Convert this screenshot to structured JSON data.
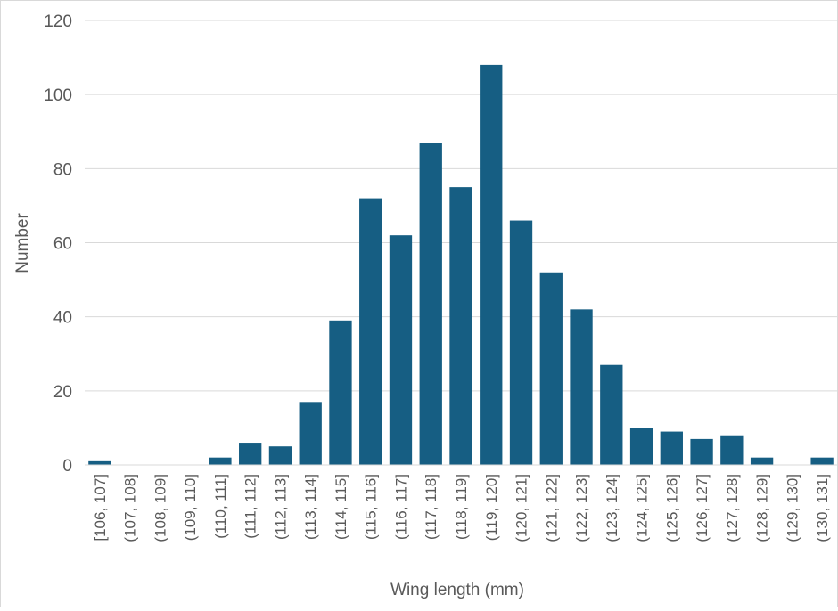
{
  "chart_data": {
    "type": "bar",
    "title": "",
    "xlabel": "Wing length (mm)",
    "ylabel": "Number",
    "ylim": [
      0,
      120
    ],
    "yticks": [
      0,
      20,
      40,
      60,
      80,
      100,
      120
    ],
    "grid": true,
    "legend": "none",
    "bar_color": "#165E83",
    "categories": [
      "[106, 107]",
      "(107, 108]",
      "(108, 109]",
      "(109, 110]",
      "(110, 111]",
      "(111, 112]",
      "(112, 113]",
      "(113, 114]",
      "(114, 115]",
      "(115, 116]",
      "(116, 117]",
      "(117, 118]",
      "(118, 119]",
      "(119, 120]",
      "(120, 121]",
      "(121, 122]",
      "(122, 123]",
      "(123, 124]",
      "(124, 125]",
      "(125, 126]",
      "(126, 127]",
      "(127, 128]",
      "(128, 129]",
      "(129, 130]",
      "(130, 131]"
    ],
    "values": [
      1,
      0,
      0,
      0,
      2,
      6,
      5,
      17,
      39,
      72,
      62,
      87,
      75,
      108,
      66,
      52,
      42,
      27,
      10,
      9,
      7,
      8,
      2,
      0,
      2
    ]
  }
}
